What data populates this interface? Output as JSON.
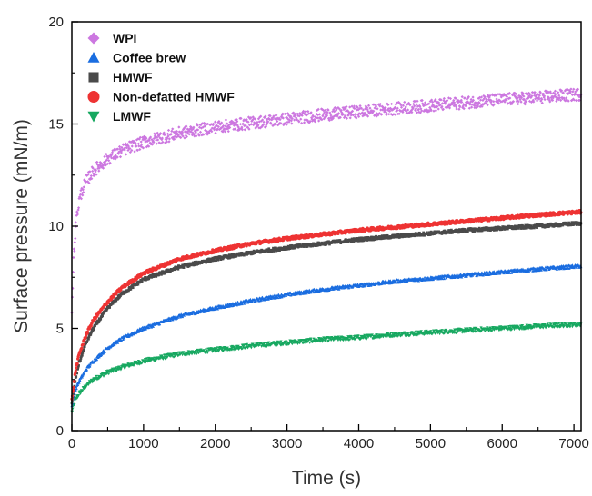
{
  "chart_data": {
    "type": "scatter",
    "xlabel": "Time (s)",
    "ylabel": "Surface pressure (mN/m)",
    "xlim": [
      0,
      7100
    ],
    "ylim": [
      0,
      20
    ],
    "xticks": [
      0,
      1000,
      2000,
      3000,
      4000,
      5000,
      6000,
      7000
    ],
    "yticks": [
      0,
      5,
      10,
      15,
      20
    ],
    "minor_x_step": 500,
    "minor_y_step": 2.5,
    "grid": false,
    "legend_position": "top-left",
    "series": [
      {
        "name": "WPI",
        "marker": "diamond",
        "color": "#cc77e0",
        "x": [
          0,
          30,
          60,
          100,
          150,
          200,
          300,
          400,
          500,
          600,
          700,
          800,
          1000,
          1200,
          1500,
          2000,
          2500,
          3000,
          3500,
          4000,
          4500,
          5000,
          5500,
          6000,
          6500,
          7100
        ],
        "y": [
          6.0,
          8.8,
          10.2,
          11.2,
          11.8,
          12.2,
          12.7,
          13.0,
          13.3,
          13.5,
          13.7,
          13.85,
          14.1,
          14.3,
          14.55,
          14.85,
          15.05,
          15.25,
          15.45,
          15.6,
          15.75,
          15.9,
          16.05,
          16.2,
          16.3,
          16.45
        ],
        "noise": 0.3
      },
      {
        "name": "Coffee brew",
        "marker": "triangle-up",
        "color": "#1a6de0",
        "x": [
          0,
          50,
          100,
          200,
          300,
          500,
          700,
          1000,
          1500,
          2000,
          2500,
          3000,
          3500,
          4000,
          4500,
          5000,
          5500,
          6000,
          6500,
          7100
        ],
        "y": [
          1.2,
          2.0,
          2.4,
          3.0,
          3.4,
          4.05,
          4.5,
          5.0,
          5.6,
          6.0,
          6.35,
          6.65,
          6.9,
          7.1,
          7.3,
          7.45,
          7.6,
          7.75,
          7.9,
          8.05
        ],
        "noise": 0.08
      },
      {
        "name": "HMWF",
        "marker": "square",
        "color": "#4a4a4a",
        "x": [
          0,
          50,
          100,
          200,
          300,
          500,
          700,
          1000,
          1500,
          2000,
          2500,
          3000,
          3500,
          4000,
          4500,
          5000,
          5500,
          6000,
          6500,
          7100
        ],
        "y": [
          1.3,
          2.5,
          3.3,
          4.3,
          5.0,
          6.0,
          6.7,
          7.4,
          8.0,
          8.4,
          8.7,
          8.95,
          9.15,
          9.35,
          9.5,
          9.65,
          9.8,
          9.9,
          10.0,
          10.15
        ],
        "noise": 0.08
      },
      {
        "name": "Non-defatted HMWF",
        "marker": "circle",
        "color": "#ee3333",
        "x": [
          0,
          50,
          100,
          200,
          300,
          500,
          700,
          1000,
          1500,
          2000,
          2500,
          3000,
          3500,
          4000,
          4500,
          5000,
          5500,
          6000,
          6500,
          7100
        ],
        "y": [
          1.5,
          2.9,
          3.7,
          4.7,
          5.4,
          6.3,
          7.0,
          7.7,
          8.4,
          8.8,
          9.15,
          9.4,
          9.6,
          9.8,
          9.95,
          10.1,
          10.25,
          10.4,
          10.55,
          10.7
        ],
        "noise": 0.08
      },
      {
        "name": "LMWF",
        "marker": "triangle-down",
        "color": "#17a860",
        "x": [
          0,
          50,
          100,
          200,
          300,
          500,
          700,
          1000,
          1500,
          2000,
          2500,
          3000,
          3500,
          4000,
          4500,
          5000,
          5500,
          6000,
          6500,
          7100
        ],
        "y": [
          0.9,
          1.5,
          1.8,
          2.2,
          2.5,
          2.85,
          3.1,
          3.4,
          3.75,
          3.95,
          4.15,
          4.3,
          4.45,
          4.55,
          4.7,
          4.8,
          4.9,
          5.0,
          5.1,
          5.2
        ],
        "noise": 0.1
      }
    ]
  }
}
